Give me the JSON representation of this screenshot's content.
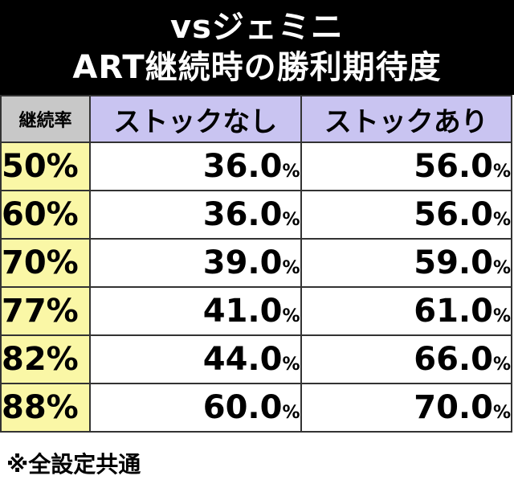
{
  "title": {
    "line1": "vsジェミニ",
    "line2": "ART継続時の勝利期待度"
  },
  "table": {
    "headers": {
      "rate": "継続率",
      "col1": "ストックなし",
      "col2": "ストックあり"
    },
    "rows": [
      {
        "rate": "50%",
        "no_stock": "36.0",
        "with_stock": "56.0"
      },
      {
        "rate": "60%",
        "no_stock": "36.0",
        "with_stock": "56.0"
      },
      {
        "rate": "70%",
        "no_stock": "39.0",
        "with_stock": "59.0"
      },
      {
        "rate": "77%",
        "no_stock": "41.0",
        "with_stock": "61.0"
      },
      {
        "rate": "82%",
        "no_stock": "44.0",
        "with_stock": "66.0"
      },
      {
        "rate": "88%",
        "no_stock": "60.0",
        "with_stock": "70.0"
      }
    ],
    "unit": "%"
  },
  "note": "※全設定共通",
  "colors": {
    "header_bg": "#000000",
    "rate_header_bg": "#c8c8c8",
    "col_header_bg": "#c9c4f1",
    "rate_cell_bg": "#faf7a6"
  }
}
